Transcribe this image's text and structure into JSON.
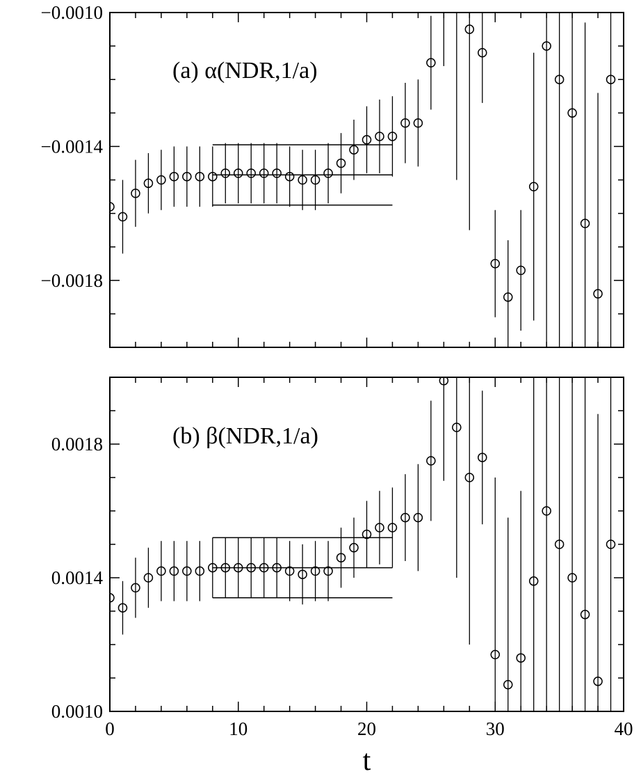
{
  "chart_data": [
    {
      "type": "scatter",
      "panel_label": "(a) α(NDR,1/a)",
      "xlim": [
        0,
        40
      ],
      "ylim": [
        -0.002,
        -0.001
      ],
      "y_ticks": [
        -0.0018,
        -0.0014,
        -0.001
      ],
      "y_tick_labels": [
        "−0.0018",
        "−0.0014",
        "−0.0010"
      ],
      "x_ticks": [
        0,
        10,
        20,
        30,
        40
      ],
      "x_tick_labels": [
        "",
        "",
        "",
        "",
        ""
      ],
      "grid": false,
      "points": [
        {
          "t": 0,
          "y": -0.00158,
          "err": 8e-05
        },
        {
          "t": 1,
          "y": -0.00161,
          "err": 0.00011
        },
        {
          "t": 2,
          "y": -0.00154,
          "err": 0.0001
        },
        {
          "t": 3,
          "y": -0.00151,
          "err": 9e-05
        },
        {
          "t": 4,
          "y": -0.0015,
          "err": 9e-05
        },
        {
          "t": 5,
          "y": -0.00149,
          "err": 9e-05
        },
        {
          "t": 6,
          "y": -0.00149,
          "err": 9e-05
        },
        {
          "t": 7,
          "y": -0.00149,
          "err": 9e-05
        },
        {
          "t": 8,
          "y": -0.00149,
          "err": 9e-05
        },
        {
          "t": 9,
          "y": -0.00148,
          "err": 9e-05
        },
        {
          "t": 10,
          "y": -0.00148,
          "err": 9e-05
        },
        {
          "t": 11,
          "y": -0.00148,
          "err": 9e-05
        },
        {
          "t": 12,
          "y": -0.00148,
          "err": 9e-05
        },
        {
          "t": 13,
          "y": -0.00148,
          "err": 9e-05
        },
        {
          "t": 14,
          "y": -0.00149,
          "err": 9e-05
        },
        {
          "t": 15,
          "y": -0.0015,
          "err": 9e-05
        },
        {
          "t": 16,
          "y": -0.0015,
          "err": 9e-05
        },
        {
          "t": 17,
          "y": -0.00148,
          "err": 9e-05
        },
        {
          "t": 18,
          "y": -0.00145,
          "err": 9e-05
        },
        {
          "t": 19,
          "y": -0.00141,
          "err": 9e-05
        },
        {
          "t": 20,
          "y": -0.00138,
          "err": 0.0001
        },
        {
          "t": 21,
          "y": -0.00137,
          "err": 0.00011
        },
        {
          "t": 22,
          "y": -0.00137,
          "err": 0.00012
        },
        {
          "t": 23,
          "y": -0.00133,
          "err": 0.00012
        },
        {
          "t": 24,
          "y": -0.00133,
          "err": 0.00013
        },
        {
          "t": 25,
          "y": -0.00115,
          "err": 0.00014
        },
        {
          "t": 26,
          "y": -0.00088,
          "err": 0.00028
        },
        {
          "t": 27,
          "y": -0.00095,
          "err": 0.00055
        },
        {
          "t": 28,
          "y": -0.00105,
          "err": 0.0006
        },
        {
          "t": 29,
          "y": -0.00112,
          "err": 0.00015
        },
        {
          "t": 30,
          "y": -0.00175,
          "err": 0.00016
        },
        {
          "t": 31,
          "y": -0.00185,
          "err": 0.00017
        },
        {
          "t": 32,
          "y": -0.00177,
          "err": 0.00018
        },
        {
          "t": 33,
          "y": -0.00152,
          "err": 0.0004
        },
        {
          "t": 34,
          "y": -0.0011,
          "err": 0.0012
        },
        {
          "t": 35,
          "y": -0.0012,
          "err": 0.0012
        },
        {
          "t": 36,
          "y": -0.0013,
          "err": 0.0012
        },
        {
          "t": 37,
          "y": -0.00163,
          "err": 0.0006
        },
        {
          "t": 38,
          "y": -0.00184,
          "err": 0.0006
        },
        {
          "t": 39,
          "y": -0.0012,
          "err": 0.0012
        }
      ],
      "fit": {
        "t_min": 8,
        "t_max": 22,
        "value": -0.001485,
        "err": 9e-05
      }
    },
    {
      "type": "scatter",
      "panel_label": "(b) β(NDR,1/a)",
      "xlim": [
        0,
        40
      ],
      "ylim": [
        0.001,
        0.002
      ],
      "y_ticks": [
        0.001,
        0.0014,
        0.0018
      ],
      "y_tick_labels": [
        "0.0010",
        "0.0014",
        "0.0018"
      ],
      "x_ticks": [
        0,
        10,
        20,
        30,
        40
      ],
      "x_tick_labels": [
        "0",
        "10",
        "20",
        "30",
        "40"
      ],
      "xlabel": "t",
      "grid": false,
      "points": [
        {
          "t": 0,
          "y": 0.00134,
          "err": 8e-05
        },
        {
          "t": 1,
          "y": 0.00131,
          "err": 8e-05
        },
        {
          "t": 2,
          "y": 0.00137,
          "err": 9e-05
        },
        {
          "t": 3,
          "y": 0.0014,
          "err": 9e-05
        },
        {
          "t": 4,
          "y": 0.00142,
          "err": 9e-05
        },
        {
          "t": 5,
          "y": 0.00142,
          "err": 9e-05
        },
        {
          "t": 6,
          "y": 0.00142,
          "err": 9e-05
        },
        {
          "t": 7,
          "y": 0.00142,
          "err": 9e-05
        },
        {
          "t": 8,
          "y": 0.00143,
          "err": 9e-05
        },
        {
          "t": 9,
          "y": 0.00143,
          "err": 9e-05
        },
        {
          "t": 10,
          "y": 0.00143,
          "err": 9e-05
        },
        {
          "t": 11,
          "y": 0.00143,
          "err": 9e-05
        },
        {
          "t": 12,
          "y": 0.00143,
          "err": 9e-05
        },
        {
          "t": 13,
          "y": 0.00143,
          "err": 9e-05
        },
        {
          "t": 14,
          "y": 0.00142,
          "err": 9e-05
        },
        {
          "t": 15,
          "y": 0.00141,
          "err": 9e-05
        },
        {
          "t": 16,
          "y": 0.00142,
          "err": 9e-05
        },
        {
          "t": 17,
          "y": 0.00142,
          "err": 9e-05
        },
        {
          "t": 18,
          "y": 0.00146,
          "err": 9e-05
        },
        {
          "t": 19,
          "y": 0.00149,
          "err": 9e-05
        },
        {
          "t": 20,
          "y": 0.00153,
          "err": 0.0001
        },
        {
          "t": 21,
          "y": 0.00155,
          "err": 0.00011
        },
        {
          "t": 22,
          "y": 0.00155,
          "err": 0.00012
        },
        {
          "t": 23,
          "y": 0.00158,
          "err": 0.00013
        },
        {
          "t": 24,
          "y": 0.00158,
          "err": 0.00016
        },
        {
          "t": 25,
          "y": 0.00175,
          "err": 0.00018
        },
        {
          "t": 26,
          "y": 0.00199,
          "err": 0.0003
        },
        {
          "t": 27,
          "y": 0.00185,
          "err": 0.00045
        },
        {
          "t": 28,
          "y": 0.0017,
          "err": 0.0005
        },
        {
          "t": 29,
          "y": 0.00176,
          "err": 0.0002
        },
        {
          "t": 30,
          "y": 0.00117,
          "err": 0.00053
        },
        {
          "t": 31,
          "y": 0.00108,
          "err": 0.0005
        },
        {
          "t": 32,
          "y": 0.00116,
          "err": 0.0005
        },
        {
          "t": 33,
          "y": 0.00139,
          "err": 0.0009
        },
        {
          "t": 34,
          "y": 0.0016,
          "err": 0.0011
        },
        {
          "t": 35,
          "y": 0.0015,
          "err": 0.0011
        },
        {
          "t": 36,
          "y": 0.0014,
          "err": 0.0011
        },
        {
          "t": 37,
          "y": 0.00129,
          "err": 0.0008
        },
        {
          "t": 38,
          "y": 0.00109,
          "err": 0.0008
        },
        {
          "t": 39,
          "y": 0.0015,
          "err": 0.0011
        }
      ],
      "fit": {
        "t_min": 8,
        "t_max": 22,
        "value": 0.00143,
        "err": 9e-05
      }
    }
  ]
}
